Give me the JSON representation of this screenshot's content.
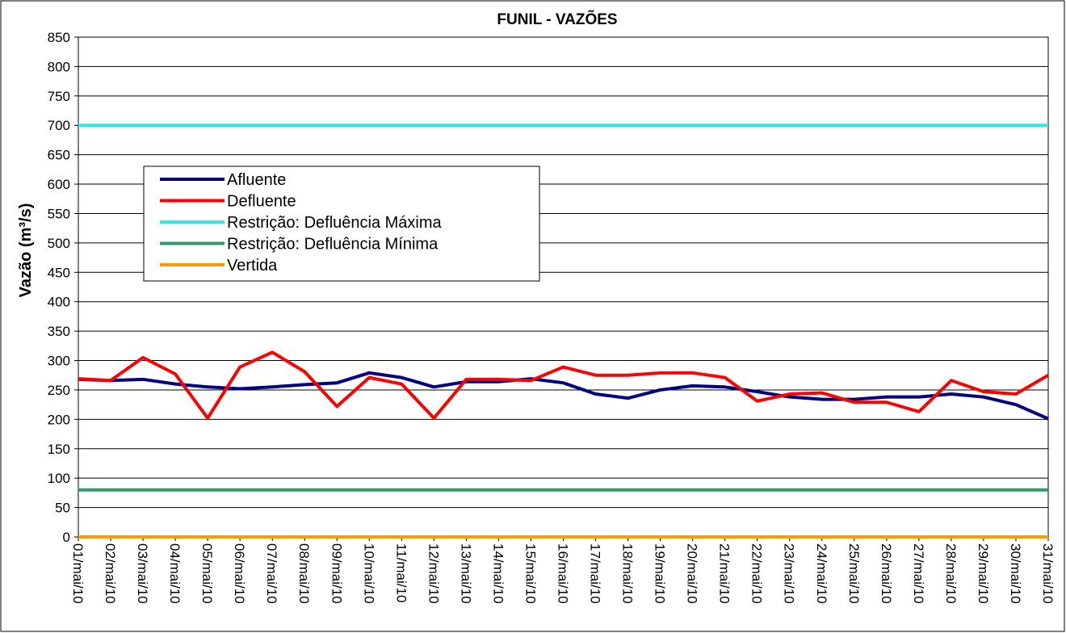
{
  "chart_data": {
    "type": "line",
    "title": "FUNIL - VAZÕES",
    "y_label": "Vazão (m³/s)",
    "categories": [
      "01/mai/10",
      "02/mai/10",
      "03/mai/10",
      "04/mai/10",
      "05/mai/10",
      "06/mai/10",
      "07/mai/10",
      "08/mai/10",
      "09/mai/10",
      "10/mai/10",
      "11/mai/10",
      "12/mai/10",
      "13/mai/10",
      "14/mai/10",
      "15/mai/10",
      "16/mai/10",
      "17/mai/10",
      "18/mai/10",
      "19/mai/10",
      "20/mai/10",
      "21/mai/10",
      "22/mai/10",
      "23/mai/10",
      "24/mai/10",
      "25/mai/10",
      "26/mai/10",
      "27/mai/10",
      "28/mai/10",
      "29/mai/10",
      "30/mai/10",
      "31/mai/10"
    ],
    "series": [
      {
        "name": "Afluente",
        "color": "#000080",
        "values": [
          268,
          266,
          268,
          260,
          255,
          252,
          255,
          259,
          262,
          279,
          271,
          255,
          264,
          264,
          269,
          262,
          243,
          236,
          250,
          257,
          255,
          247,
          238,
          234,
          234,
          238,
          238,
          243,
          238,
          225,
          201
        ]
      },
      {
        "name": "Defluente",
        "color": "#ff0000",
        "values": [
          269,
          266,
          305,
          277,
          202,
          289,
          314,
          281,
          222,
          271,
          260,
          202,
          268,
          268,
          266,
          289,
          275,
          275,
          279,
          279,
          271,
          231,
          243,
          245,
          229,
          229,
          213,
          266,
          247,
          243,
          275
        ]
      },
      {
        "name": "Restrição: Defluência Máxima",
        "color": "#33e6e6",
        "values": [
          700,
          700,
          700,
          700,
          700,
          700,
          700,
          700,
          700,
          700,
          700,
          700,
          700,
          700,
          700,
          700,
          700,
          700,
          700,
          700,
          700,
          700,
          700,
          700,
          700,
          700,
          700,
          700,
          700,
          700,
          700
        ]
      },
      {
        "name": "Restrição: Defluência Mínima",
        "color": "#339966",
        "values": [
          80,
          80,
          80,
          80,
          80,
          80,
          80,
          80,
          80,
          80,
          80,
          80,
          80,
          80,
          80,
          80,
          80,
          80,
          80,
          80,
          80,
          80,
          80,
          80,
          80,
          80,
          80,
          80,
          80,
          80,
          80
        ]
      },
      {
        "name": "Vertida",
        "color": "#ff9900",
        "values": [
          0,
          0,
          0,
          0,
          0,
          0,
          0,
          0,
          0,
          0,
          0,
          0,
          0,
          0,
          0,
          0,
          0,
          0,
          0,
          0,
          0,
          0,
          0,
          0,
          0,
          0,
          0,
          0,
          0,
          0,
          0
        ]
      }
    ],
    "ylim": [
      0,
      850
    ],
    "yticks": [
      0,
      50,
      100,
      150,
      200,
      250,
      300,
      350,
      400,
      450,
      500,
      550,
      600,
      650,
      700,
      750,
      800,
      850
    ],
    "grid": true
  }
}
